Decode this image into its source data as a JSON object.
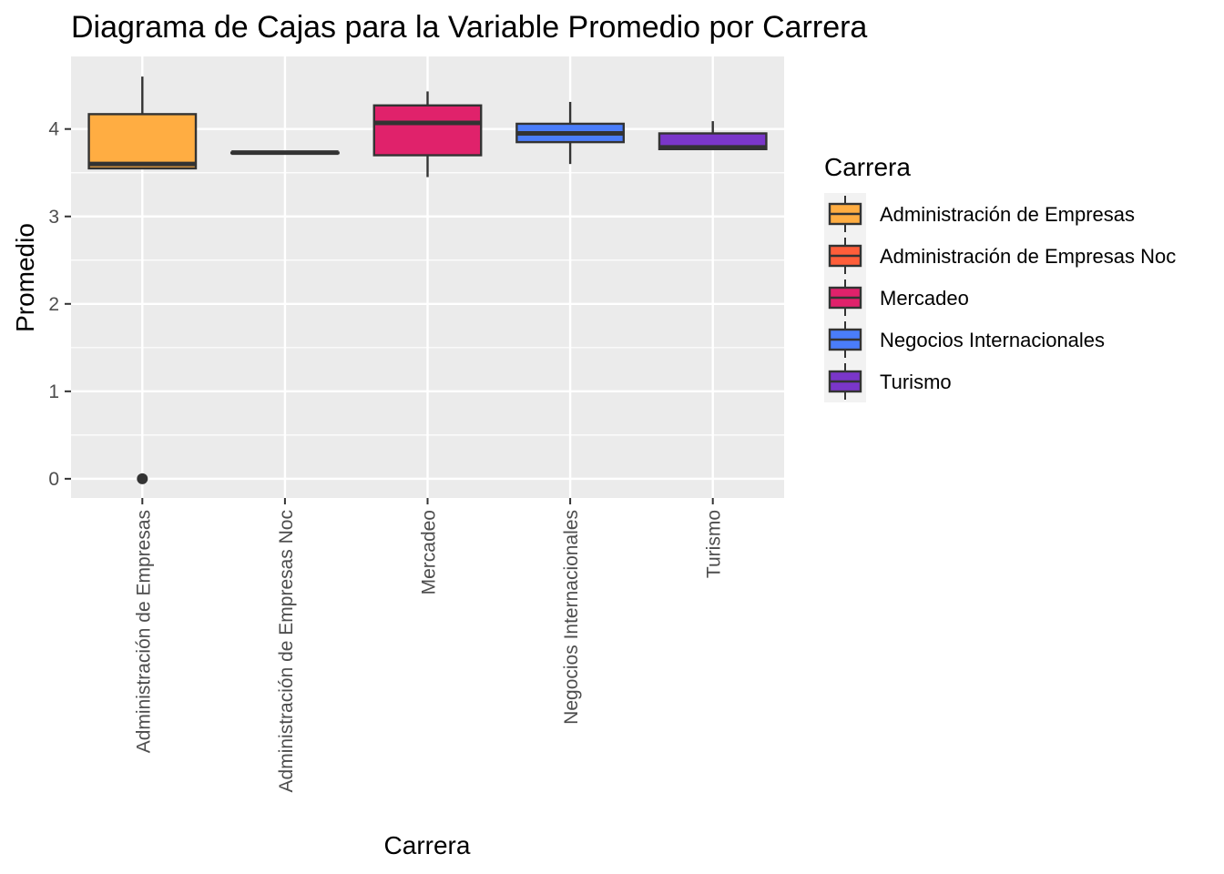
{
  "chart_data": {
    "type": "boxplot",
    "title": "Diagrama de Cajas para la Variable Promedio por Carrera",
    "xlabel": "Carrera",
    "ylabel": "Promedio",
    "ylim": [
      -0.22,
      4.83
    ],
    "y_ticks": [
      0,
      1,
      2,
      3,
      4
    ],
    "grid": true,
    "legend": {
      "title": "Carrera",
      "position": "right"
    },
    "categories": [
      "Administración de Empresas",
      "Administración de Empresas Noc",
      "Mercadeo",
      "Negocios Internacionales",
      "Turismo"
    ],
    "series": [
      {
        "category": "Administración de Empresas",
        "color": "#FFAD42",
        "min": 3.55,
        "q1": 3.55,
        "median": 3.6,
        "q3": 4.17,
        "max": 4.6,
        "outliers": [
          0
        ]
      },
      {
        "category": "Administración de Empresas Noc",
        "color": "#FF5E3A",
        "min": 3.73,
        "q1": 3.73,
        "median": 3.73,
        "q3": 3.73,
        "max": 3.73,
        "outliers": []
      },
      {
        "category": "Mercadeo",
        "color": "#E0226B",
        "min": 3.45,
        "q1": 3.7,
        "median": 4.07,
        "q3": 4.27,
        "max": 4.43,
        "outliers": []
      },
      {
        "category": "Negocios Internacionales",
        "color": "#4A7DFA",
        "min": 3.6,
        "q1": 3.85,
        "median": 3.95,
        "q3": 4.06,
        "max": 4.31,
        "outliers": []
      },
      {
        "category": "Turismo",
        "color": "#7A36C9",
        "min": 3.77,
        "q1": 3.77,
        "median": 3.79,
        "q3": 3.95,
        "max": 4.09,
        "outliers": []
      }
    ]
  }
}
